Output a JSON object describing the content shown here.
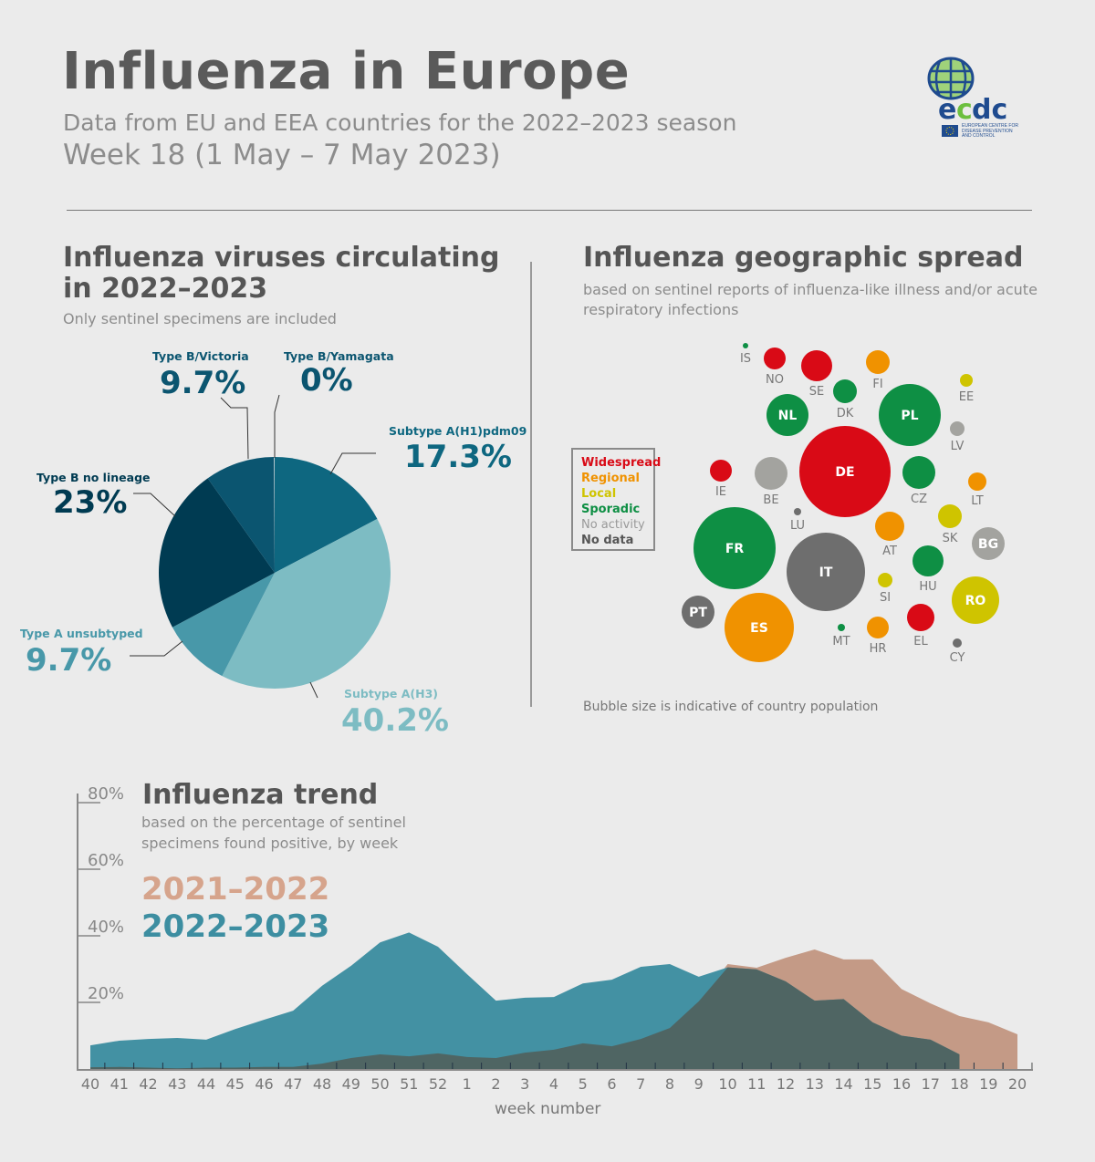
{
  "header": {
    "title": "Influenza in Europe",
    "subtitle": "Data from EU and EEA countries for the 2022–2023 season",
    "week": "Week 18 (1 May – 7 May 2023)",
    "logo": {
      "text": "ecdc",
      "caption": "EUROPEAN CENTRE FOR DISEASE PREVENTION AND CONTROL"
    }
  },
  "pie_section": {
    "title_line1": "Influenza viruses circulating",
    "title_line2": "in 2022–2023",
    "note": "Only sentinel specimens are included"
  },
  "map_section": {
    "title": "Influenza geographic spread",
    "note_line1": "based on sentinel reports of influenza-like illness and/or acute",
    "note_line2": "respiratory infections",
    "footnote": "Bubble size is indicative of country population"
  },
  "trend_section": {
    "title": "Influenza trend",
    "note_line1": "based on the percentage of sentinel",
    "note_line2": "specimens found positive, by week"
  },
  "chart_data": [
    {
      "type": "pie",
      "slices": [
        {
          "label": "Subtype A(H1)pdm09",
          "value": 17.3,
          "display": "17.3%",
          "color": "#0e6780"
        },
        {
          "label": "Subtype A(H3)",
          "value": 40.2,
          "display": "40.2%",
          "color": "#7dbcc3"
        },
        {
          "label": "Type A unsubtyped",
          "value": 9.7,
          "display": "9.7%",
          "color": "#4898a9"
        },
        {
          "label": "Type B no lineage",
          "value": 23,
          "display": "23%",
          "color": "#003b52"
        },
        {
          "label": "Type B/Victoria",
          "value": 9.7,
          "display": "9.7%",
          "color": "#0b5570"
        },
        {
          "label": "Type B/Yamagata",
          "value": 0,
          "display": "0%",
          "color": "#0b5570"
        }
      ]
    },
    {
      "type": "bubble",
      "legend": [
        {
          "key": "widespread",
          "label": "Widespread",
          "color": "#d90a16"
        },
        {
          "key": "regional",
          "label": "Regional",
          "color": "#f09200"
        },
        {
          "key": "local",
          "label": "Local",
          "color": "#cfc400"
        },
        {
          "key": "sporadic",
          "label": "Sporadic",
          "color": "#0e8f44"
        },
        {
          "key": "noactivity",
          "label": "No activity",
          "color": "#a3a39f"
        },
        {
          "key": "nodata",
          "label": "No data",
          "color": "#6e6e6e"
        }
      ],
      "countries": [
        {
          "code": "IS",
          "status": "sporadic"
        },
        {
          "code": "NO",
          "status": "widespread"
        },
        {
          "code": "SE",
          "status": "widespread"
        },
        {
          "code": "FI",
          "status": "regional"
        },
        {
          "code": "DK",
          "status": "sporadic"
        },
        {
          "code": "NL",
          "status": "sporadic"
        },
        {
          "code": "PL",
          "status": "sporadic"
        },
        {
          "code": "EE",
          "status": "local"
        },
        {
          "code": "LV",
          "status": "noactivity"
        },
        {
          "code": "DE",
          "status": "widespread"
        },
        {
          "code": "IE",
          "status": "widespread"
        },
        {
          "code": "BE",
          "status": "noactivity"
        },
        {
          "code": "CZ",
          "status": "sporadic"
        },
        {
          "code": "LT",
          "status": "regional"
        },
        {
          "code": "SK",
          "status": "local"
        },
        {
          "code": "LU",
          "status": "nodata"
        },
        {
          "code": "AT",
          "status": "regional"
        },
        {
          "code": "BG",
          "status": "noactivity"
        },
        {
          "code": "FR",
          "status": "sporadic"
        },
        {
          "code": "IT",
          "status": "nodata"
        },
        {
          "code": "HU",
          "status": "sporadic"
        },
        {
          "code": "SI",
          "status": "local"
        },
        {
          "code": "RO",
          "status": "local"
        },
        {
          "code": "PT",
          "status": "nodata"
        },
        {
          "code": "ES",
          "status": "regional"
        },
        {
          "code": "MT",
          "status": "sporadic"
        },
        {
          "code": "HR",
          "status": "regional"
        },
        {
          "code": "EL",
          "status": "widespread"
        },
        {
          "code": "CY",
          "status": "nodata"
        }
      ]
    },
    {
      "type": "area",
      "xlabel": "week number",
      "ylabel": "",
      "ylim": [
        0,
        80
      ],
      "yticks": [
        "20%",
        "40%",
        "60%",
        "80%"
      ],
      "categories": [
        "40",
        "41",
        "42",
        "43",
        "44",
        "45",
        "46",
        "47",
        "48",
        "49",
        "50",
        "51",
        "52",
        "1",
        "2",
        "3",
        "4",
        "5",
        "6",
        "7",
        "8",
        "9",
        "10",
        "11",
        "12",
        "13",
        "14",
        "15",
        "16",
        "17",
        "18",
        "19",
        "20"
      ],
      "series": [
        {
          "name": "2021–2022",
          "color": "#c49a86",
          "values": [
            0.5,
            0.6,
            0.4,
            0.2,
            0.4,
            0.4,
            0.6,
            0.6,
            1.6,
            3.3,
            4.4,
            3.8,
            4.7,
            3.6,
            3.3,
            4.9,
            5.8,
            7.7,
            6.8,
            9,
            12.3,
            20.3,
            31.5,
            30.4,
            33.4,
            35.9,
            32.9,
            32.9,
            24,
            19.7,
            15.9,
            14,
            10.4
          ]
        },
        {
          "name": "2022–2023",
          "color": "#4391a3",
          "values": [
            7.1,
            8.5,
            9,
            9.3,
            8.8,
            12,
            14.8,
            17.5,
            25,
            31,
            38,
            41,
            36.7,
            28.5,
            20.5,
            21.4,
            21.6,
            25.7,
            26.8,
            30.7,
            31.5,
            27.7,
            30.5,
            29.9,
            26.3,
            20.5,
            21,
            14,
            10,
            8.8,
            4.4,
            null,
            null
          ]
        }
      ],
      "overlap_color": "#4f6563"
    }
  ]
}
